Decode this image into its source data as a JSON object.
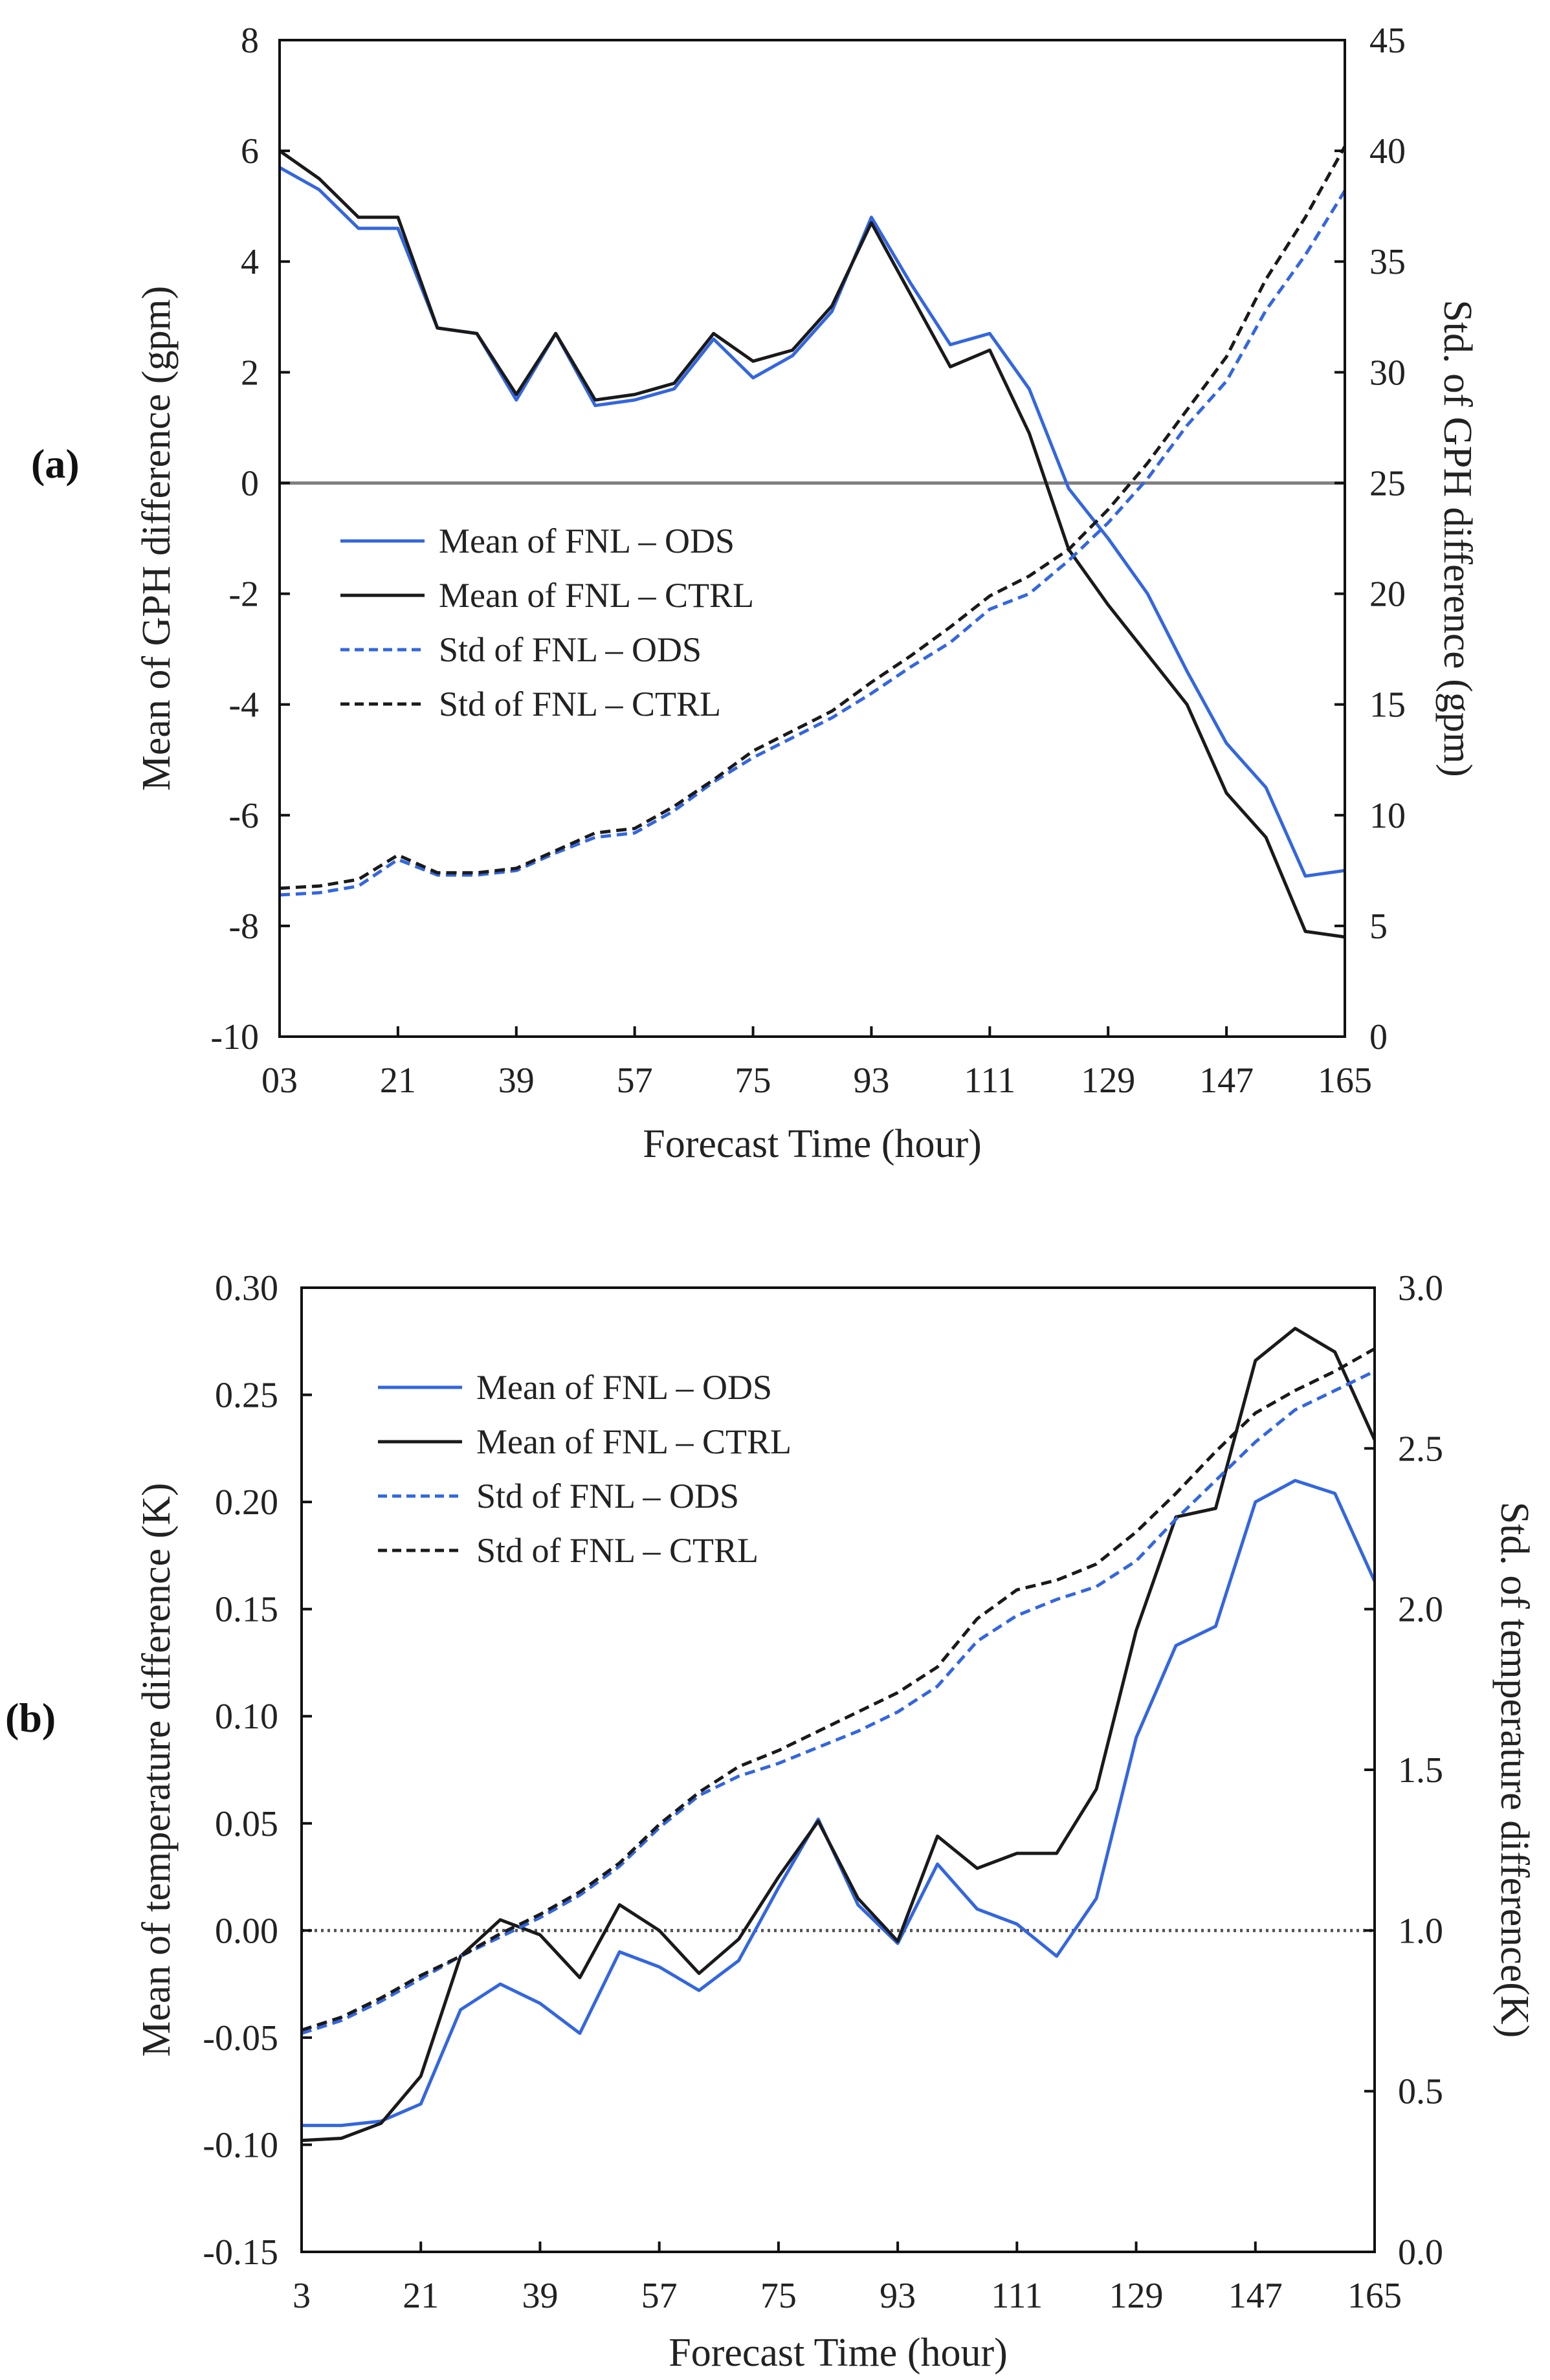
{
  "colors": {
    "ods": "#3366e0",
    "ctrl": "#1a1a1a",
    "zero_line_a": "#808080",
    "zero_line_b": "#555555"
  },
  "chart_data": [
    {
      "type": "line",
      "panel_label": "(a)",
      "x": [
        3,
        9,
        15,
        21,
        27,
        33,
        39,
        45,
        51,
        57,
        63,
        69,
        75,
        81,
        87,
        93,
        99,
        105,
        111,
        117,
        123,
        129,
        135,
        141,
        147,
        153,
        159,
        165
      ],
      "xticks": [
        "03",
        "21",
        "39",
        "57",
        "75",
        "93",
        "111",
        "129",
        "147",
        "165"
      ],
      "xlabel": "Forecast  Time (hour)",
      "ylabel": "Mean of GPH difference (gpm)",
      "y2label": "Std. of GPH difference (gpm)",
      "ylim": [
        -10,
        8
      ],
      "y2lim": [
        0,
        45
      ],
      "yticks": [
        "-10",
        "-8",
        "-6",
        "-4",
        "-2",
        "0",
        "2",
        "4",
        "6",
        "8"
      ],
      "y2ticks": [
        "0",
        "5",
        "10",
        "15",
        "20",
        "25",
        "30",
        "35",
        "40",
        "45"
      ],
      "zero_line": "solid",
      "legend_position": "middle-left",
      "series": [
        {
          "name": "Mean of FNL – ODS",
          "axis": "left",
          "style": "solid",
          "color": "#3366e0",
          "values": [
            5.7,
            5.3,
            4.6,
            4.6,
            2.8,
            2.7,
            1.5,
            2.7,
            1.4,
            1.5,
            1.7,
            2.6,
            1.9,
            2.3,
            3.1,
            4.8,
            3.6,
            2.5,
            2.7,
            1.7,
            -0.1,
            -1.0,
            -2.0,
            -3.4,
            -4.7,
            -5.5,
            -7.1,
            -7.0
          ]
        },
        {
          "name": "Mean of FNL – CTRL",
          "axis": "left",
          "style": "solid",
          "color": "#1a1a1a",
          "values": [
            6.0,
            5.5,
            4.8,
            4.8,
            2.8,
            2.7,
            1.6,
            2.7,
            1.5,
            1.6,
            1.8,
            2.7,
            2.2,
            2.4,
            3.2,
            4.7,
            3.4,
            2.1,
            2.4,
            0.9,
            -1.2,
            -2.2,
            -3.1,
            -4.0,
            -5.6,
            -6.4,
            -8.1,
            -8.2
          ]
        },
        {
          "name": "Std of FNL – ODS",
          "axis": "right",
          "style": "dashed",
          "color": "#3366e0",
          "values": [
            6.4,
            6.5,
            6.8,
            8.0,
            7.3,
            7.3,
            7.5,
            8.3,
            9.0,
            9.2,
            10.2,
            11.5,
            12.6,
            13.5,
            14.4,
            15.5,
            16.7,
            17.8,
            19.3,
            20.0,
            21.5,
            23.2,
            25.2,
            27.6,
            29.6,
            32.8,
            35.3,
            38.2
          ]
        },
        {
          "name": "Std of FNL – CTRL",
          "axis": "right",
          "style": "dashed",
          "color": "#1a1a1a",
          "values": [
            6.7,
            6.8,
            7.1,
            8.2,
            7.4,
            7.4,
            7.6,
            8.4,
            9.2,
            9.4,
            10.4,
            11.6,
            12.9,
            13.8,
            14.7,
            16.0,
            17.2,
            18.5,
            19.9,
            20.8,
            22.0,
            23.8,
            25.9,
            28.3,
            30.7,
            34.2,
            37.0,
            40.2
          ]
        }
      ]
    },
    {
      "type": "line",
      "panel_label": "(b)",
      "x": [
        3,
        9,
        15,
        21,
        27,
        33,
        39,
        45,
        51,
        57,
        63,
        69,
        75,
        81,
        87,
        93,
        99,
        105,
        111,
        117,
        123,
        129,
        135,
        141,
        147,
        153,
        159,
        165
      ],
      "xticks": [
        "3",
        "21",
        "39",
        "57",
        "75",
        "93",
        "111",
        "129",
        "147",
        "165"
      ],
      "xlabel": "Forecast  Time (hour)",
      "ylabel": "Mean of temperature difference (K)",
      "y2label": "Std. of temperature difference(K)",
      "ylim": [
        -0.15,
        0.3
      ],
      "y2lim": [
        0.0,
        3.0
      ],
      "yticks": [
        "-0.15",
        "-0.10",
        "-0.05",
        "0.00",
        "0.05",
        "0.10",
        "0.15",
        "0.20",
        "0.25",
        "0.30"
      ],
      "y2ticks": [
        "0.0",
        "0.5",
        "1.0",
        "1.5",
        "2.0",
        "2.5",
        "3.0"
      ],
      "zero_line": "dotted",
      "legend_position": "top-left",
      "series": [
        {
          "name": "Mean of FNL – ODS",
          "axis": "left",
          "style": "solid",
          "color": "#3366e0",
          "values": [
            -0.091,
            -0.091,
            -0.089,
            -0.081,
            -0.037,
            -0.025,
            -0.034,
            -0.048,
            -0.01,
            -0.017,
            -0.028,
            -0.014,
            0.02,
            0.052,
            0.012,
            -0.006,
            0.031,
            0.01,
            0.003,
            -0.012,
            0.015,
            0.09,
            0.133,
            0.142,
            0.2,
            0.21,
            0.204,
            0.163
          ]
        },
        {
          "name": "Mean of FNL – CTRL",
          "axis": "left",
          "style": "solid",
          "color": "#1a1a1a",
          "values": [
            -0.098,
            -0.097,
            -0.09,
            -0.068,
            -0.012,
            0.005,
            -0.002,
            -0.022,
            0.012,
            0.0,
            -0.02,
            -0.004,
            0.025,
            0.051,
            0.015,
            -0.005,
            0.044,
            0.029,
            0.036,
            0.036,
            0.066,
            0.14,
            0.193,
            0.197,
            0.266,
            0.281,
            0.27,
            0.229
          ]
        },
        {
          "name": "Std of FNL – ODS",
          "axis": "right",
          "style": "dashed",
          "color": "#3366e0",
          "values": [
            0.68,
            0.72,
            0.78,
            0.85,
            0.92,
            0.98,
            1.04,
            1.11,
            1.2,
            1.32,
            1.42,
            1.48,
            1.52,
            1.57,
            1.62,
            1.68,
            1.76,
            1.9,
            1.98,
            2.03,
            2.07,
            2.15,
            2.28,
            2.4,
            2.52,
            2.62,
            2.68,
            2.74
          ]
        },
        {
          "name": "Std of FNL – CTRL",
          "axis": "right",
          "style": "dashed",
          "color": "#1a1a1a",
          "values": [
            0.69,
            0.73,
            0.79,
            0.86,
            0.92,
            0.99,
            1.05,
            1.12,
            1.21,
            1.33,
            1.43,
            1.51,
            1.56,
            1.62,
            1.68,
            1.74,
            1.82,
            1.97,
            2.06,
            2.09,
            2.14,
            2.24,
            2.36,
            2.49,
            2.61,
            2.68,
            2.74,
            2.81
          ]
        }
      ]
    }
  ]
}
